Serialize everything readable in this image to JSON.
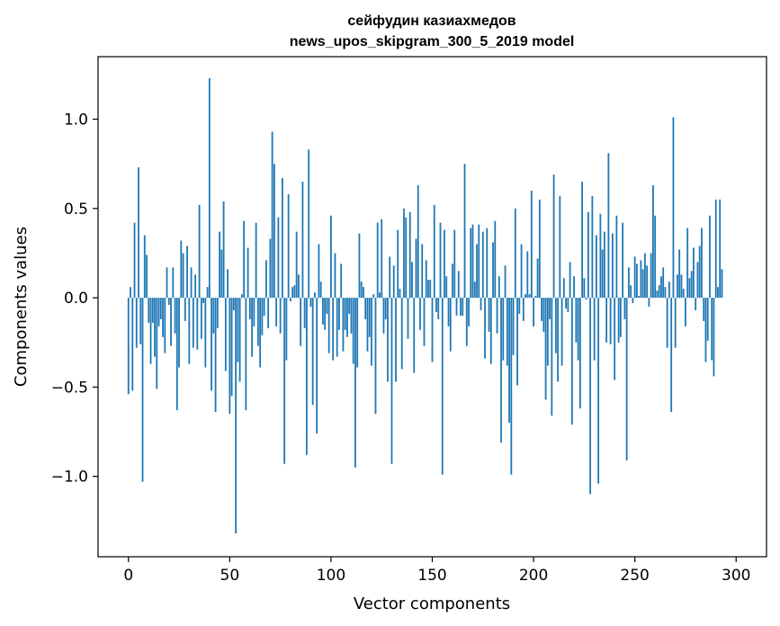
{
  "chart_data": {
    "type": "bar",
    "title_line1": "сейфудин казиахмедов",
    "title_line2": "news_upos_skipgram_300_5_2019 model",
    "xlabel": "Vector components",
    "ylabel": "Components values",
    "xlim": [
      -15,
      315
    ],
    "ylim": [
      -1.45,
      1.35
    ],
    "xticks": [
      0,
      50,
      100,
      150,
      200,
      250,
      300
    ],
    "xtick_labels": [
      "0",
      "50",
      "100",
      "150",
      "200",
      "250",
      "300"
    ],
    "yticks": [
      -1.0,
      -0.5,
      0.0,
      0.5,
      1.0
    ],
    "ytick_labels": [
      "−1.0",
      "−0.5",
      "0.0",
      "0.5",
      "1.0"
    ],
    "bar_color": "#1f77b4",
    "values": [
      -0.54,
      0.06,
      -0.52,
      0.42,
      -0.28,
      0.73,
      -0.26,
      -1.03,
      0.35,
      0.24,
      -0.14,
      -0.37,
      -0.14,
      -0.33,
      -0.51,
      -0.16,
      -0.12,
      -0.22,
      -0.31,
      0.17,
      -0.04,
      -0.27,
      0.17,
      -0.2,
      -0.63,
      -0.39,
      0.32,
      0.25,
      -0.13,
      0.29,
      -0.37,
      0.17,
      -0.28,
      0.13,
      -0.29,
      0.52,
      -0.23,
      -0.03,
      -0.39,
      0.06,
      1.23,
      -0.52,
      -0.2,
      -0.64,
      -0.17,
      0.37,
      0.27,
      0.54,
      -0.41,
      0.16,
      -0.65,
      -0.55,
      -0.07,
      -1.32,
      -0.36,
      -0.47,
      0.02,
      0.43,
      -0.63,
      0.28,
      -0.12,
      -0.33,
      -0.16,
      0.42,
      -0.27,
      -0.39,
      -0.21,
      -0.1,
      0.21,
      -0.17,
      0.33,
      0.93,
      0.75,
      -0.16,
      0.45,
      -0.2,
      0.67,
      -0.93,
      -0.35,
      0.58,
      -0.02,
      0.06,
      0.07,
      0.37,
      0.13,
      -0.27,
      0.65,
      -0.17,
      -0.88,
      0.83,
      -0.05,
      -0.6,
      0.03,
      -0.76,
      0.3,
      0.09,
      -0.15,
      -0.18,
      -0.09,
      -0.31,
      0.46,
      -0.35,
      0.25,
      -0.33,
      -0.18,
      0.19,
      -0.3,
      -0.18,
      -0.22,
      -0.09,
      -0.2,
      -0.37,
      -0.95,
      -0.39,
      0.36,
      0.09,
      0.06,
      -0.12,
      -0.3,
      -0.22,
      -0.38,
      0.02,
      -0.65,
      0.42,
      0.03,
      0.44,
      -0.2,
      -0.12,
      -0.47,
      0.23,
      -0.93,
      0.18,
      -0.47,
      0.38,
      0.05,
      -0.4,
      0.5,
      0.45,
      -0.23,
      0.48,
      0.2,
      -0.42,
      0.33,
      0.63,
      -0.18,
      0.3,
      -0.27,
      0.21,
      0.1,
      0.1,
      -0.36,
      0.52,
      -0.08,
      -0.12,
      0.42,
      -0.99,
      0.38,
      0.12,
      -0.16,
      -0.3,
      0.19,
      0.38,
      -0.1,
      0.15,
      -0.1,
      -0.1,
      0.75,
      -0.27,
      -0.16,
      0.39,
      0.41,
      0.09,
      0.3,
      0.41,
      -0.07,
      0.37,
      -0.34,
      0.39,
      -0.19,
      -0.37,
      0.31,
      0.43,
      -0.2,
      0.12,
      -0.81,
      -0.35,
      0.18,
      -0.38,
      -0.7,
      -0.99,
      -0.32,
      0.5,
      -0.49,
      -0.09,
      0.3,
      -0.13,
      0.02,
      0.26,
      0.02,
      0.6,
      -0.16,
      0.01,
      0.22,
      0.55,
      -0.13,
      -0.19,
      -0.57,
      -0.38,
      -0.12,
      -0.66,
      0.69,
      -0.31,
      -0.47,
      0.57,
      -0.38,
      0.11,
      -0.06,
      -0.08,
      0.2,
      -0.71,
      0.12,
      -0.25,
      -0.35,
      -0.62,
      0.65,
      0.11,
      -0.01,
      0.48,
      -1.1,
      0.57,
      -0.35,
      0.35,
      -1.04,
      0.47,
      0.27,
      0.37,
      -0.25,
      0.81,
      -0.26,
      0.36,
      -0.46,
      0.46,
      -0.25,
      -0.22,
      0.42,
      -0.12,
      -0.91,
      0.17,
      0.07,
      -0.03,
      0.23,
      0.19,
      0.01,
      0.21,
      0.16,
      0.25,
      0.18,
      -0.05,
      0.25,
      0.63,
      0.46,
      0.04,
      0.07,
      0.12,
      0.17,
      0.06,
      -0.28,
      0.09,
      -0.64,
      1.01,
      -0.28,
      0.13,
      0.27,
      0.13,
      0.05,
      -0.16,
      0.39,
      0.11,
      0.15,
      0.28,
      -0.07,
      0.2,
      0.29,
      0.39,
      -0.13,
      -0.36,
      -0.24,
      0.46,
      -0.35,
      -0.44,
      0.55,
      0.06,
      0.55,
      0.16,
      0.0,
      0.0,
      0.0,
      0.0,
      0.0,
      0.0
    ]
  }
}
